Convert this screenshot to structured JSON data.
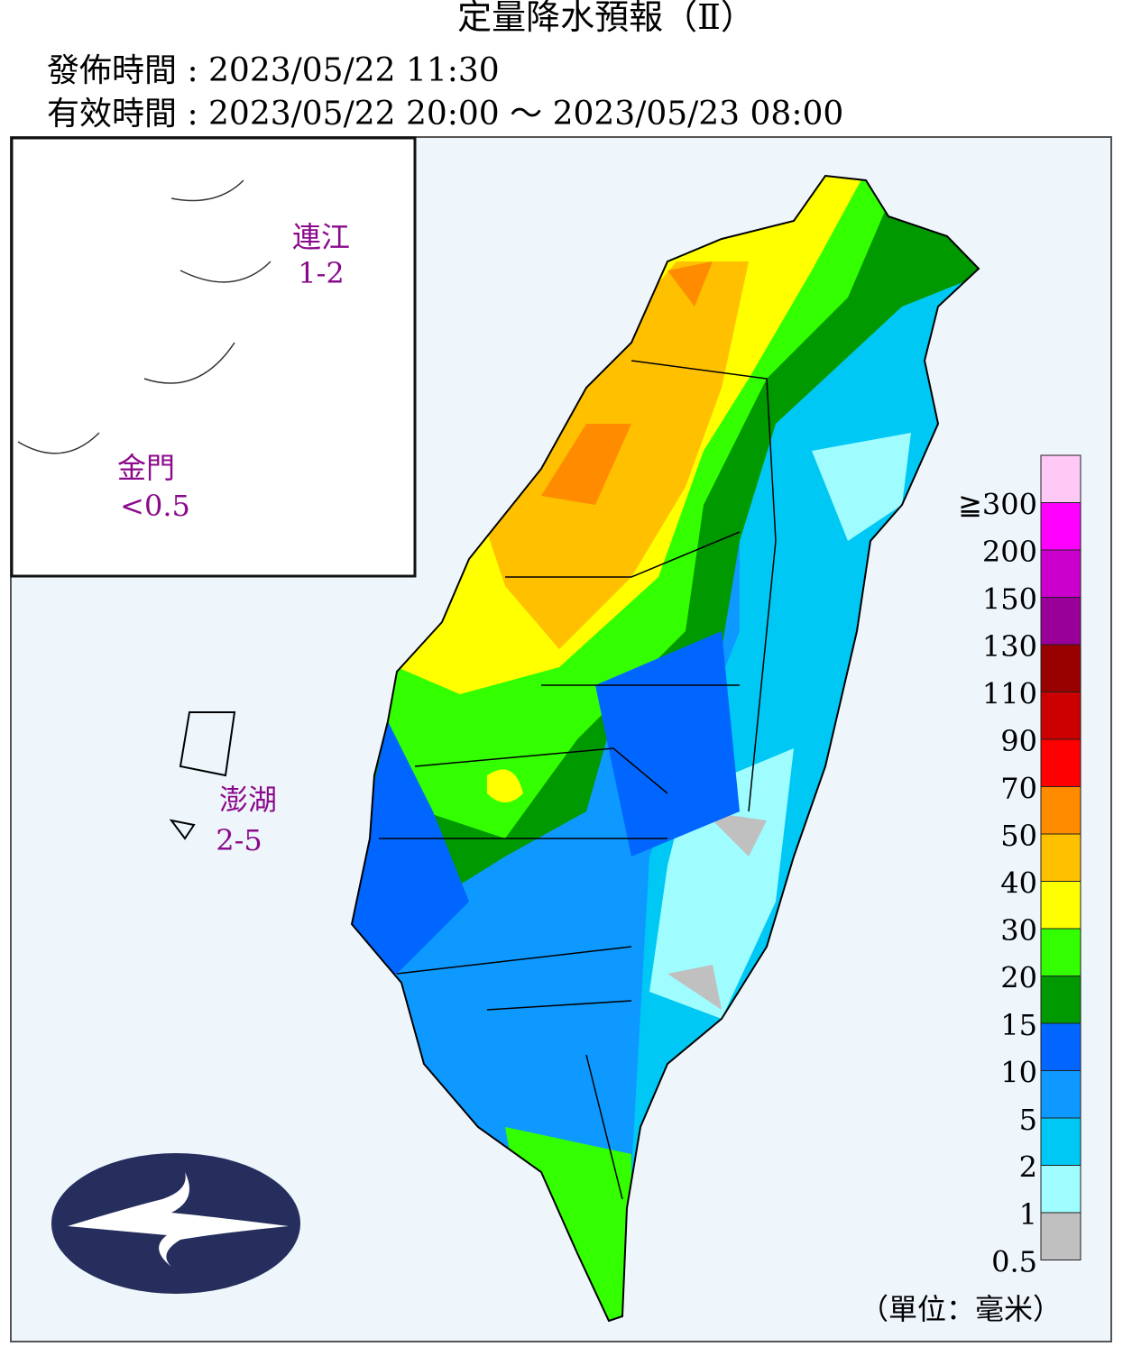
{
  "header": {
    "title": "定量降水預報（Ⅱ）",
    "issued": "發佈時間 : 2023/05/22 11:30",
    "valid": "有效時間 : 2023/05/22 20:00 ～ 2023/05/23 08:00"
  },
  "islands": [
    {
      "name": "連江",
      "range": "1-2"
    },
    {
      "name": "金門",
      "range": "<0.5"
    },
    {
      "name": "澎湖",
      "range": "2-5"
    }
  ],
  "legend": {
    "items": [
      {
        "label": "≧300",
        "color": "#ffc8f5"
      },
      {
        "label": "200",
        "color": "#ff00ff"
      },
      {
        "label": "150",
        "color": "#cc00cc"
      },
      {
        "label": "130",
        "color": "#990099"
      },
      {
        "label": "110",
        "color": "#990000"
      },
      {
        "label": "90",
        "color": "#cc0000"
      },
      {
        "label": "70",
        "color": "#ff0000"
      },
      {
        "label": "50",
        "color": "#ff8c00"
      },
      {
        "label": "40",
        "color": "#ffc000"
      },
      {
        "label": "30",
        "color": "#ffff00"
      },
      {
        "label": "20",
        "color": "#33ff00"
      },
      {
        "label": "15",
        "color": "#009900"
      },
      {
        "label": "10",
        "color": "#0066ff"
      },
      {
        "label": "5",
        "color": "#0d99ff"
      },
      {
        "label": "2",
        "color": "#00c8f5"
      },
      {
        "label": "1",
        "color": "#9ffcff"
      },
      {
        "label": "0.5",
        "color": "#c0c0c0"
      }
    ],
    "unit": "（單位：毫米）"
  }
}
